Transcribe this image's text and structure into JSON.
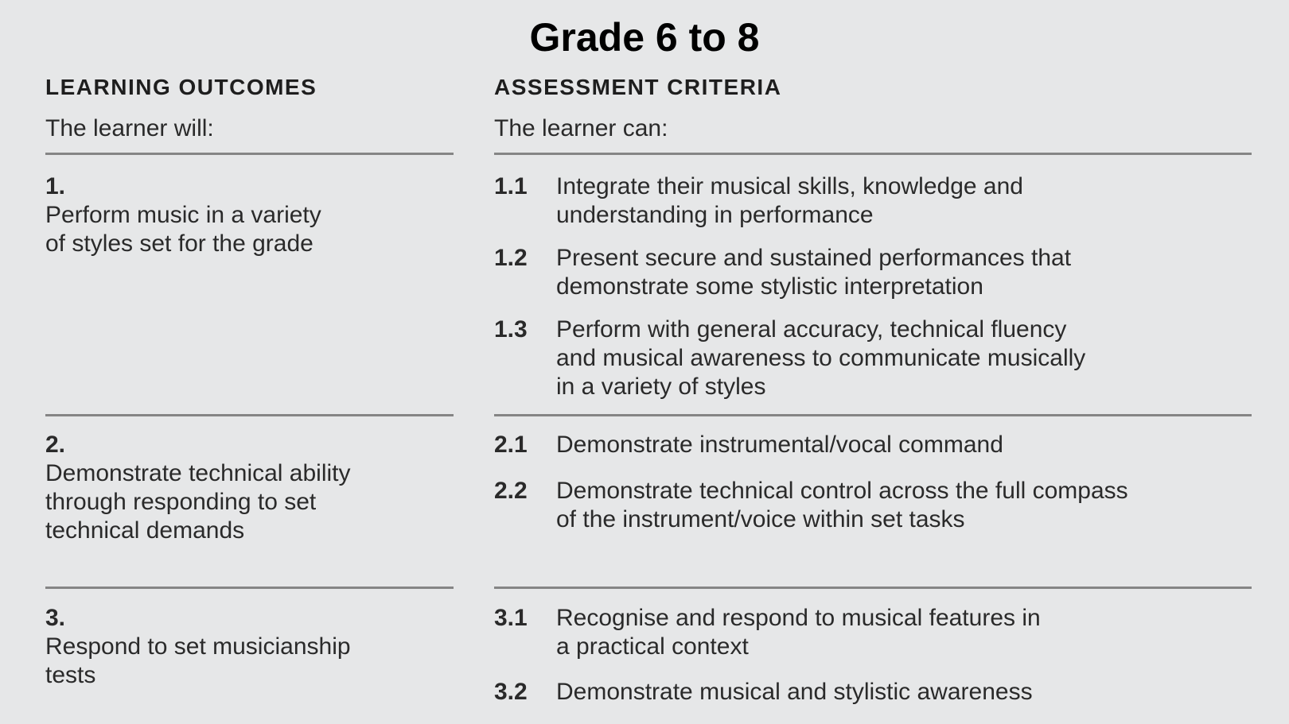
{
  "title": "Grade 6 to 8",
  "learning_outcomes": {
    "heading": "LEARNING OUTCOMES",
    "intro": "The learner will:",
    "items": [
      {
        "number": "1.",
        "lines": [
          "Perform music in a variety",
          "of styles set for the grade"
        ]
      },
      {
        "number": "2.",
        "lines": [
          "Demonstrate technical ability",
          "through responding to set",
          "technical demands"
        ]
      },
      {
        "number": "3.",
        "lines": [
          "Respond to set musicianship",
          "tests"
        ]
      }
    ]
  },
  "assessment_criteria": {
    "heading": "ASSESSMENT CRITERIA",
    "intro": "The learner can:",
    "items": [
      {
        "number": "1.1",
        "lines": [
          "Integrate their musical skills, knowledge and",
          "understanding in performance"
        ]
      },
      {
        "number": "1.2",
        "lines": [
          "Present secure and sustained performances that",
          "demonstrate some stylistic interpretation"
        ]
      },
      {
        "number": "1.3",
        "lines": [
          "Perform with general accuracy, technical fluency",
          "and musical awareness to communicate musically",
          "in a variety of styles"
        ]
      },
      {
        "number": "2.1",
        "lines": [
          "Demonstrate instrumental/vocal command"
        ]
      },
      {
        "number": "2.2",
        "lines": [
          "Demonstrate technical control across the full compass",
          "of the instrument/voice within set tasks"
        ]
      },
      {
        "number": "3.1",
        "lines": [
          "Recognise and respond to musical features in",
          "a practical context"
        ]
      },
      {
        "number": "3.2",
        "lines": [
          "Demonstrate musical and stylistic awareness"
        ]
      }
    ]
  }
}
